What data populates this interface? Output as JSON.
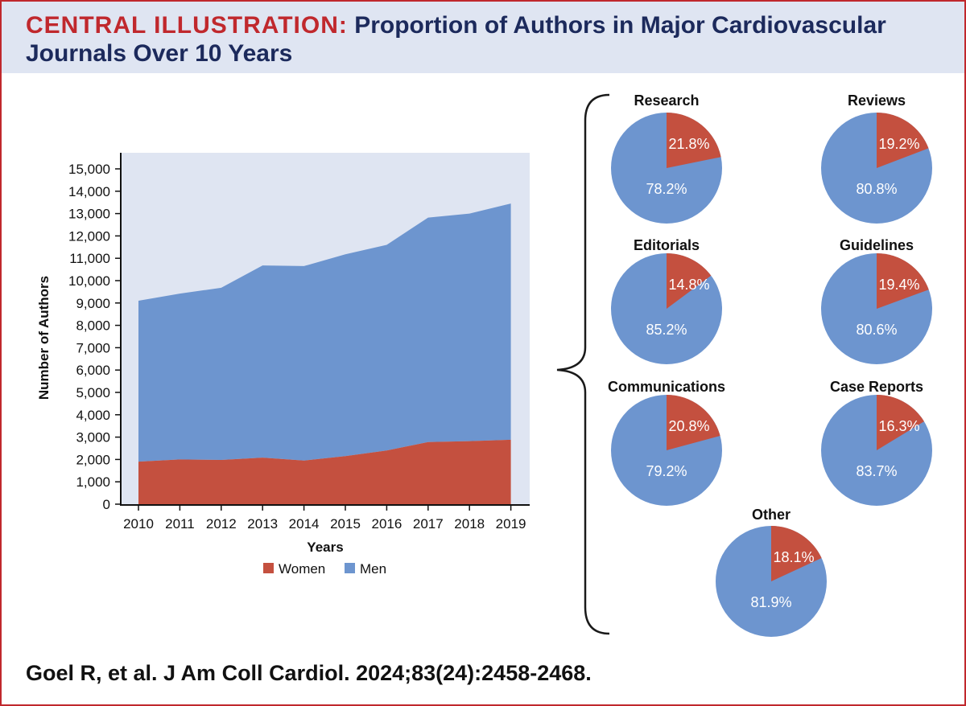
{
  "header": {
    "label": "CENTRAL ILLUSTRATION:",
    "title": "Proportion of Authors in Major Cardiovascular Journals Over 10 Years"
  },
  "citation": "Goel R, et al. J Am Coll Cardiol. 2024;83(24):2458-2468.",
  "colors": {
    "women": "#c4503f",
    "men": "#6d95cf",
    "plot_bg": "#dfe5f2",
    "accent": "#c0282d",
    "navy": "#1c2a5c"
  },
  "chart_data": [
    {
      "type": "area",
      "stacked": true,
      "xlabel": "Years",
      "ylabel": "Number of Authors",
      "ylim": [
        0,
        15000
      ],
      "yticks": [
        0,
        1000,
        2000,
        3000,
        4000,
        5000,
        6000,
        7000,
        8000,
        9000,
        10000,
        11000,
        12000,
        13000,
        14000,
        15000
      ],
      "ytick_labels": [
        "0",
        "1,000",
        "2,000",
        "3,000",
        "4,000",
        "5,000",
        "6,000",
        "7,000",
        "8,000",
        "9,000",
        "10,000",
        "11,000",
        "12,000",
        "13,000",
        "14,000",
        "15,000"
      ],
      "categories": [
        "2010",
        "2011",
        "2012",
        "2013",
        "2014",
        "2015",
        "2016",
        "2017",
        "2018",
        "2019"
      ],
      "series": [
        {
          "name": "Women",
          "values": [
            1900,
            2000,
            1980,
            2080,
            1950,
            2150,
            2400,
            2780,
            2820,
            2880
          ]
        },
        {
          "name": "Men",
          "values": [
            7200,
            7420,
            7700,
            8600,
            8700,
            9030,
            9200,
            10040,
            10180,
            10570
          ]
        }
      ],
      "totals": [
        9100,
        9420,
        9680,
        10680,
        10650,
        11180,
        11600,
        12820,
        13000,
        13450
      ],
      "legend": {
        "position": "bottom",
        "entries": [
          "Women",
          "Men"
        ]
      },
      "grid": false
    },
    {
      "type": "pie",
      "slice_names": [
        "Women",
        "Men"
      ],
      "pies": [
        {
          "title": "Research",
          "women": 21.8,
          "men": 78.2,
          "women_label": "21.8%",
          "men_label": "78.2%"
        },
        {
          "title": "Reviews",
          "women": 19.2,
          "men": 80.8,
          "women_label": "19.2%",
          "men_label": "80.8%"
        },
        {
          "title": "Editorials",
          "women": 14.8,
          "men": 85.2,
          "women_label": "14.8%",
          "men_label": "85.2%"
        },
        {
          "title": "Guidelines",
          "women": 19.4,
          "men": 80.6,
          "women_label": "19.4%",
          "men_label": "80.6%"
        },
        {
          "title": "Communications",
          "women": 20.8,
          "men": 79.2,
          "women_label": "20.8%",
          "men_label": "79.2%"
        },
        {
          "title": "Case Reports",
          "women": 16.3,
          "men": 83.7,
          "women_label": "16.3%",
          "men_label": "83.7%"
        },
        {
          "title": "Other",
          "women": 18.1,
          "men": 81.9,
          "women_label": "18.1%",
          "men_label": "81.9%"
        }
      ]
    }
  ]
}
